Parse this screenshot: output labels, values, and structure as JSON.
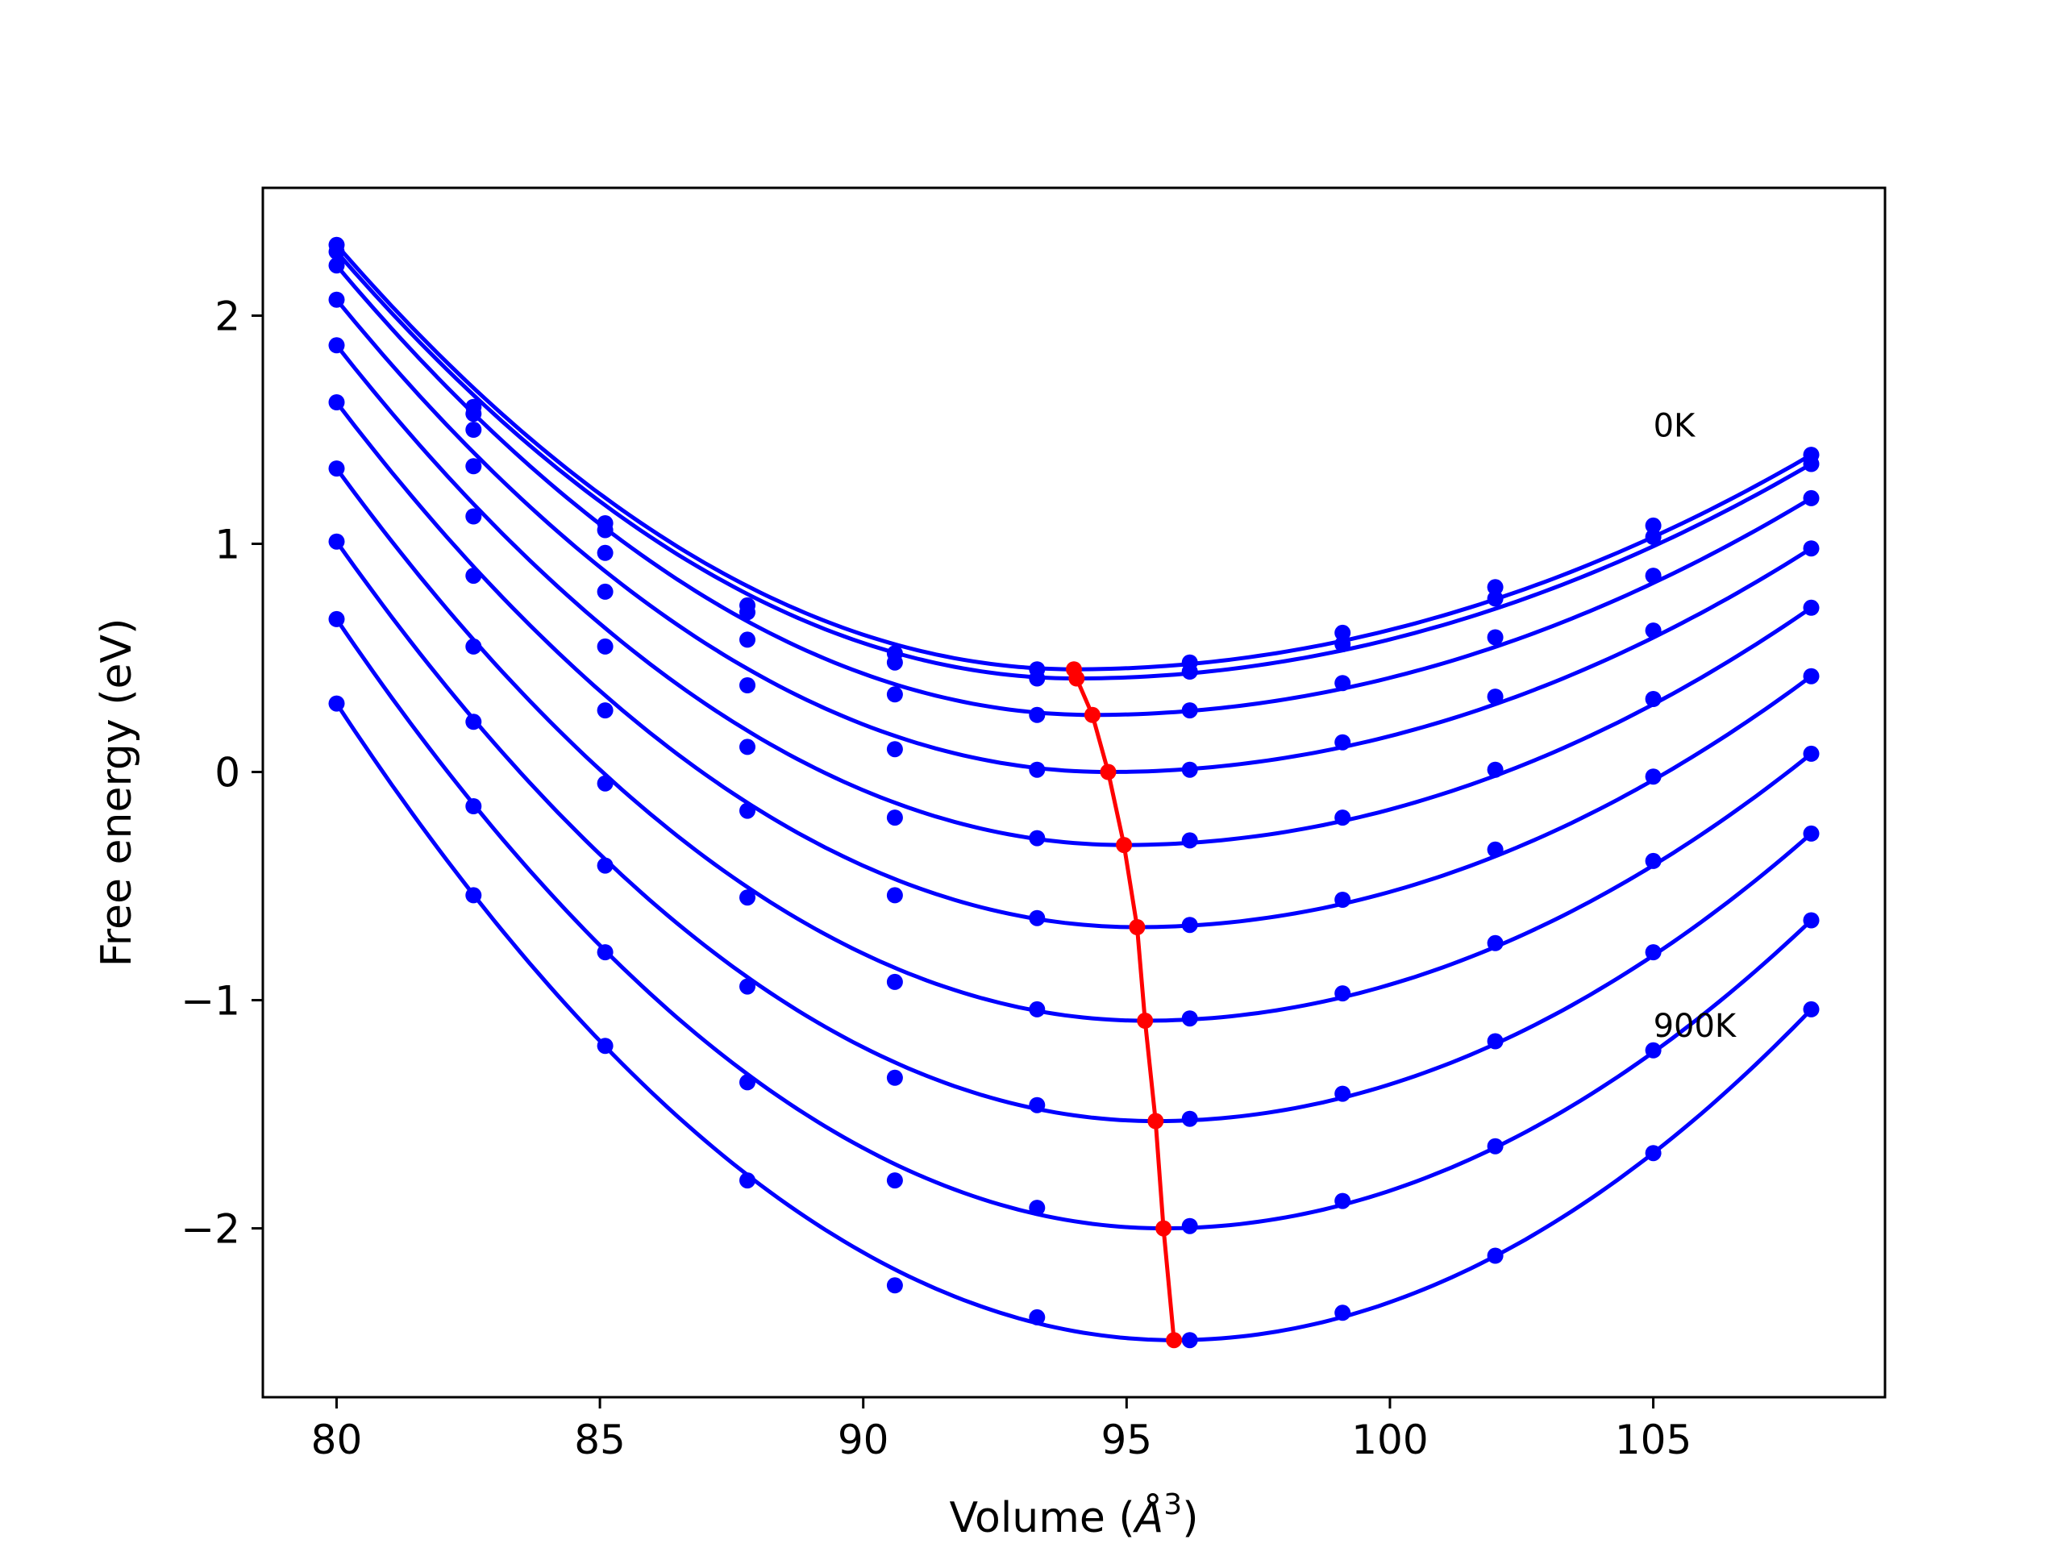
{
  "chart_data": {
    "type": "line",
    "xlabel": "Volume (Å³)",
    "xlabel_main": "Volume (",
    "xlabel_symbol": "Å",
    "xlabel_exp": "3",
    "xlabel_close": ")",
    "ylabel": "Free energy (eV)",
    "xlim": [
      78.6,
      109.4
    ],
    "ylim": [
      -2.74,
      2.56
    ],
    "xticks": [
      80,
      85,
      90,
      95,
      100,
      105
    ],
    "xtick_labels": [
      "80",
      "85",
      "90",
      "95",
      "100",
      "105"
    ],
    "yticks": [
      -2,
      -1,
      0,
      1,
      2
    ],
    "ytick_labels": [
      "−2",
      "−1",
      "0",
      "1",
      "2"
    ],
    "grid": false,
    "colors": {
      "curves": "#0000ff",
      "minimum_line": "#ff0000",
      "frame": "#000000"
    },
    "annotations": [
      {
        "text": "0K",
        "x": 105.0,
        "y": 1.47
      },
      {
        "text": "900K",
        "x": 105.0,
        "y": -1.16
      }
    ],
    "volumes": [
      80.0,
      82.6,
      85.1,
      87.8,
      90.6,
      93.3,
      96.2,
      99.1,
      102.0,
      105.0,
      108.0
    ],
    "series": [
      {
        "min_v": 94.0,
        "min_f": 0.45,
        "points": [
          2.31,
          1.6,
          1.09,
          0.73,
          0.52,
          0.45,
          0.48,
          0.61,
          0.81,
          1.08,
          1.39
        ]
      },
      {
        "min_v": 94.05,
        "min_f": 0.41,
        "points": [
          2.28,
          1.57,
          1.06,
          0.7,
          0.48,
          0.41,
          0.44,
          0.56,
          0.76,
          1.03,
          1.35
        ]
      },
      {
        "min_v": 94.35,
        "min_f": 0.25,
        "points": [
          2.22,
          1.5,
          0.96,
          0.58,
          0.34,
          0.25,
          0.27,
          0.39,
          0.59,
          0.86,
          1.2
        ]
      },
      {
        "min_v": 94.65,
        "min_f": 0.0,
        "points": [
          2.07,
          1.34,
          0.79,
          0.38,
          0.1,
          0.01,
          0.01,
          0.13,
          0.33,
          0.62,
          0.98
        ]
      },
      {
        "min_v": 94.95,
        "min_f": -0.32,
        "points": [
          1.87,
          1.12,
          0.55,
          0.11,
          -0.2,
          -0.29,
          -0.3,
          -0.2,
          0.01,
          0.32,
          0.72
        ]
      },
      {
        "min_v": 95.2,
        "min_f": -0.68,
        "points": [
          1.62,
          0.86,
          0.27,
          -0.17,
          -0.54,
          -0.64,
          -0.67,
          -0.56,
          -0.34,
          -0.02,
          0.42
        ]
      },
      {
        "min_v": 95.35,
        "min_f": -1.09,
        "points": [
          1.33,
          0.55,
          -0.05,
          -0.55,
          -0.92,
          -1.04,
          -1.08,
          -0.97,
          -0.75,
          -0.39,
          0.08
        ]
      },
      {
        "min_v": 95.55,
        "min_f": -1.53,
        "points": [
          1.01,
          0.22,
          -0.41,
          -0.94,
          -1.34,
          -1.46,
          -1.52,
          -1.41,
          -1.18,
          -0.79,
          -0.27
        ]
      },
      {
        "min_v": 95.7,
        "min_f": -2.0,
        "points": [
          0.67,
          -0.15,
          -0.79,
          -1.36,
          -1.79,
          -1.91,
          -1.99,
          -1.88,
          -1.64,
          -1.22,
          -0.65
        ]
      },
      {
        "min_v": 95.9,
        "min_f": -2.49,
        "points": [
          0.3,
          -0.54,
          -1.2,
          -1.79,
          -2.25,
          -2.39,
          -2.49,
          -2.37,
          -2.12,
          -1.67,
          -1.04
        ]
      }
    ]
  }
}
